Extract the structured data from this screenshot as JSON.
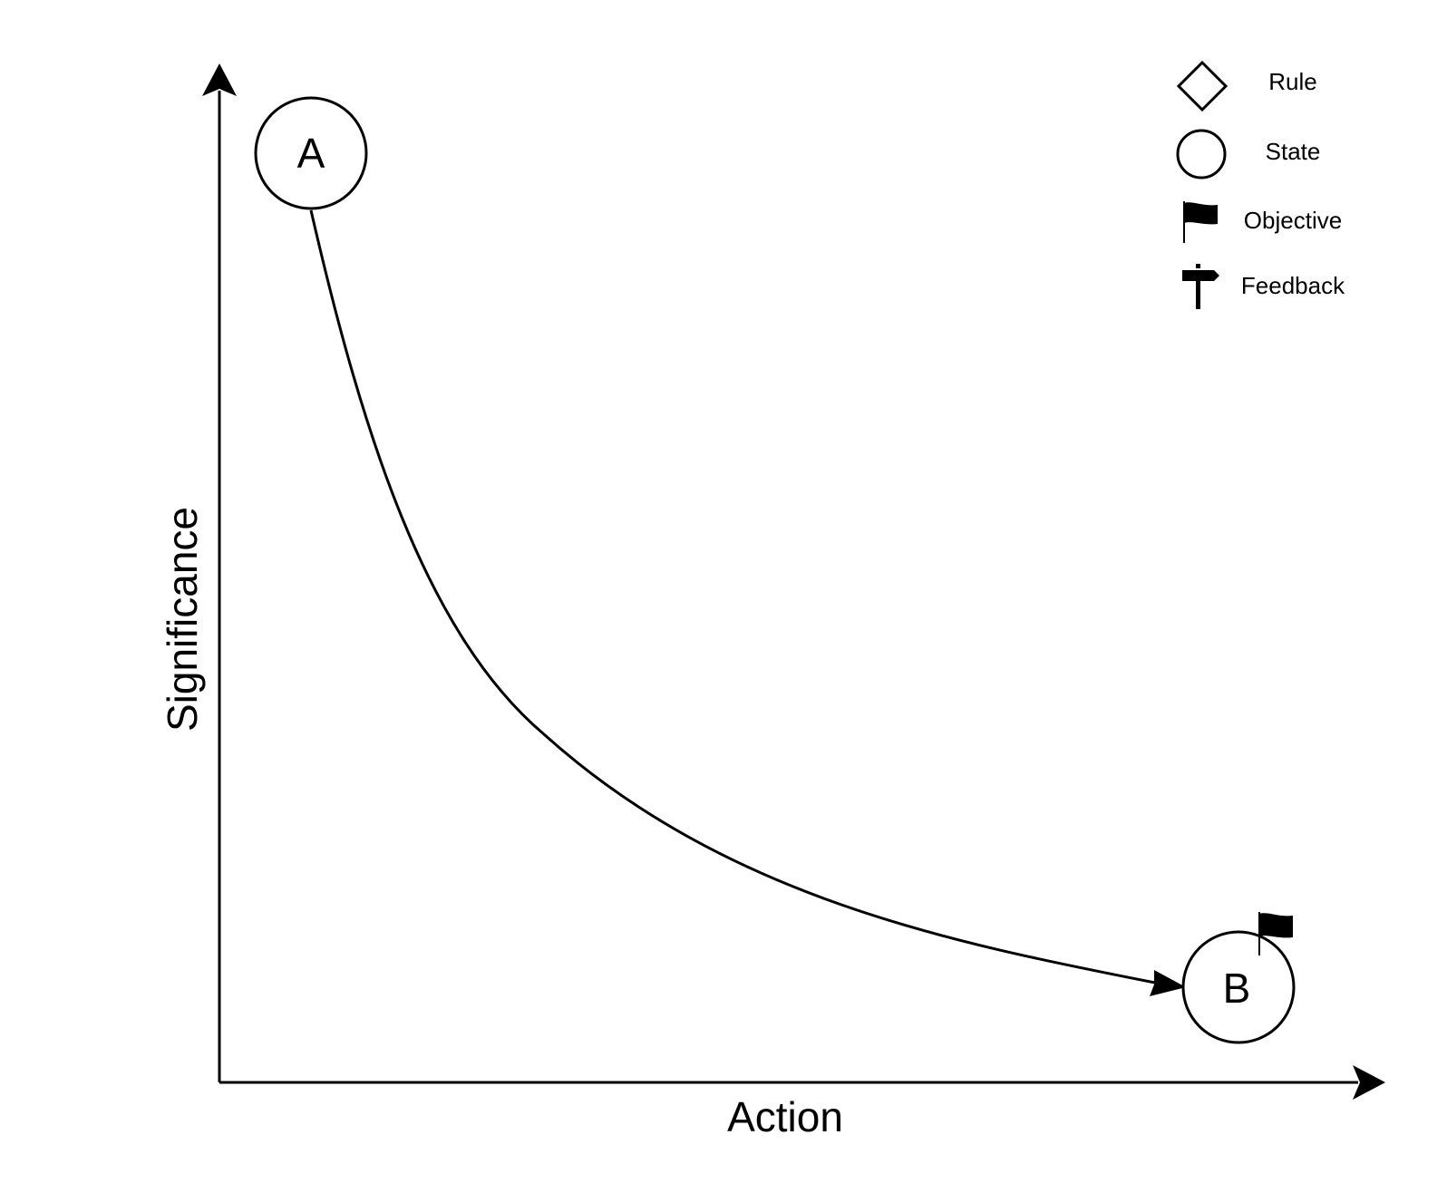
{
  "axes": {
    "x_label": "Action",
    "y_label": "Significance"
  },
  "nodes": {
    "start": {
      "label": "A",
      "icon": "state-circle-icon"
    },
    "end": {
      "label": "B",
      "icon": "state-circle-icon",
      "badge": "objective-flag-icon"
    }
  },
  "legend": {
    "items": [
      {
        "icon": "rule-diamond-icon",
        "label": "Rule"
      },
      {
        "icon": "state-circle-icon",
        "label": "State"
      },
      {
        "icon": "objective-flag-icon",
        "label": "Objective"
      },
      {
        "icon": "feedback-signpost-icon",
        "label": "Feedback"
      }
    ]
  },
  "colors": {
    "stroke": "#000000",
    "background": "#ffffff"
  }
}
